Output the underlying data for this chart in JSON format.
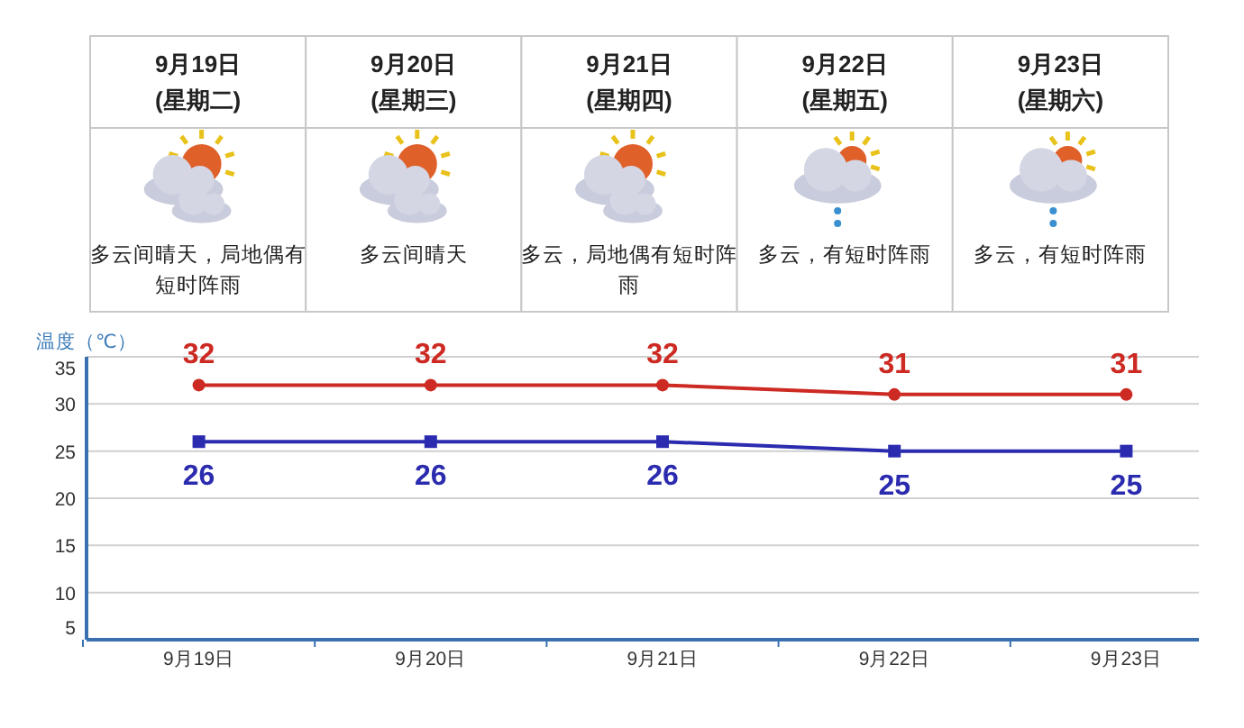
{
  "chart_data": [
    {
      "type": "other",
      "categories": [
        "9月19日",
        "9月20日",
        "9月21日",
        "9月22日",
        "9月23日"
      ],
      "annotations": [
        "(星期二)",
        "多云间晴天，局地偶有短时阵雨",
        "(星期三)",
        "多云间晴天",
        "(星期四)",
        "多云，局地偶有短时阵雨",
        "(星期五)",
        "多云，有短时阵雨",
        "(星期六)",
        "多云，有短时阵雨"
      ]
    },
    {
      "type": "line",
      "ylabel": "温度（℃）",
      "categories": [
        "9月19日",
        "9月20日",
        "9月21日",
        "9月22日",
        "9月23日"
      ],
      "series": [
        {
          "color": "#cc2a22",
          "marker": "circle",
          "values": [
            32,
            32,
            32,
            31,
            31
          ]
        },
        {
          "color": "#2b2bb0",
          "marker": "square",
          "values": [
            26,
            26,
            26,
            25,
            25
          ]
        }
      ],
      "ylim": [
        5,
        35
      ],
      "yticks": [
        5,
        10,
        15,
        20,
        25,
        30,
        35
      ],
      "grid": "y",
      "data_labels": true
    }
  ]
}
